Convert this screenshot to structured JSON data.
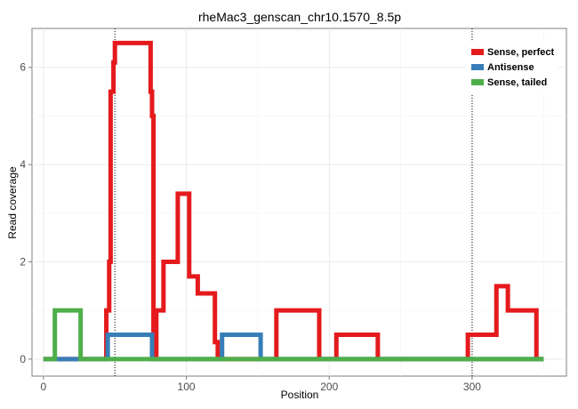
{
  "chart_data": {
    "type": "line",
    "title": "rheMac3_genscan_chr10.1570_8.5p",
    "xlabel": "Position",
    "ylabel": "Read coverage",
    "xlim": [
      -8,
      366
    ],
    "ylim": [
      -0.35,
      6.8
    ],
    "xticks": [
      0,
      100,
      200,
      300
    ],
    "yticks": [
      0,
      2,
      4,
      6
    ],
    "xminor": [
      50,
      150,
      250,
      350
    ],
    "yminor": [
      1,
      3,
      5
    ],
    "grid": true,
    "vlines": [
      50,
      300
    ],
    "legend_position": "top-right",
    "series": [
      {
        "name": "Sense, perfect",
        "color": "#e41a1c",
        "x": [
          0,
          44,
          44,
          46,
          46,
          47,
          47,
          49,
          49,
          50,
          50,
          75,
          75,
          76,
          76,
          77,
          77,
          79,
          79,
          80,
          80,
          84,
          84,
          94,
          94,
          100,
          100,
          102,
          102,
          108,
          108,
          110,
          110,
          120,
          120,
          122,
          122,
          163,
          163,
          193,
          193,
          205,
          205,
          234,
          234,
          297,
          297,
          317,
          317,
          325,
          325,
          345,
          345,
          350
        ],
        "y": [
          0,
          0,
          1,
          1,
          2,
          2,
          5.5,
          5.5,
          6.1,
          6.1,
          6.5,
          6.5,
          5.5,
          5.5,
          5.0,
          5.0,
          0,
          0,
          1.0,
          1.0,
          1.0,
          1.0,
          2.0,
          2.0,
          3.4,
          3.4,
          3.4,
          3.4,
          1.7,
          1.7,
          1.35,
          1.35,
          1.35,
          1.35,
          0.35,
          0.35,
          0,
          0,
          1.0,
          1.0,
          0,
          0,
          0.5,
          0.5,
          0,
          0,
          0.5,
          0.5,
          1.5,
          1.5,
          1.0,
          1.0,
          0,
          0
        ]
      },
      {
        "name": "Antisense",
        "color": "#377eb8",
        "x": [
          0,
          45,
          45,
          76,
          76,
          125,
          125,
          152,
          152,
          350
        ],
        "y": [
          0,
          0,
          0.5,
          0.5,
          0,
          0,
          0.5,
          0.5,
          0,
          0
        ]
      },
      {
        "name": "Sense, tailed",
        "color": "#4daf4a",
        "x": [
          0,
          8,
          8,
          26,
          26,
          350
        ],
        "y": [
          0,
          0,
          1.0,
          1.0,
          0,
          0
        ]
      }
    ]
  }
}
